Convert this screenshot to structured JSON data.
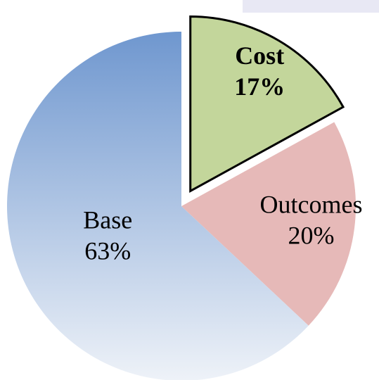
{
  "chart_data": {
    "type": "pie",
    "categories": [
      "Cost",
      "Outcomes",
      "Base"
    ],
    "values": [
      17,
      20,
      63
    ],
    "value_labels": [
      "17%",
      "20%",
      "63%"
    ],
    "colors": [
      "#c3d69b",
      "#e6b9b8",
      "#6f97cf"
    ],
    "explode": [
      true,
      false,
      false
    ]
  }
}
